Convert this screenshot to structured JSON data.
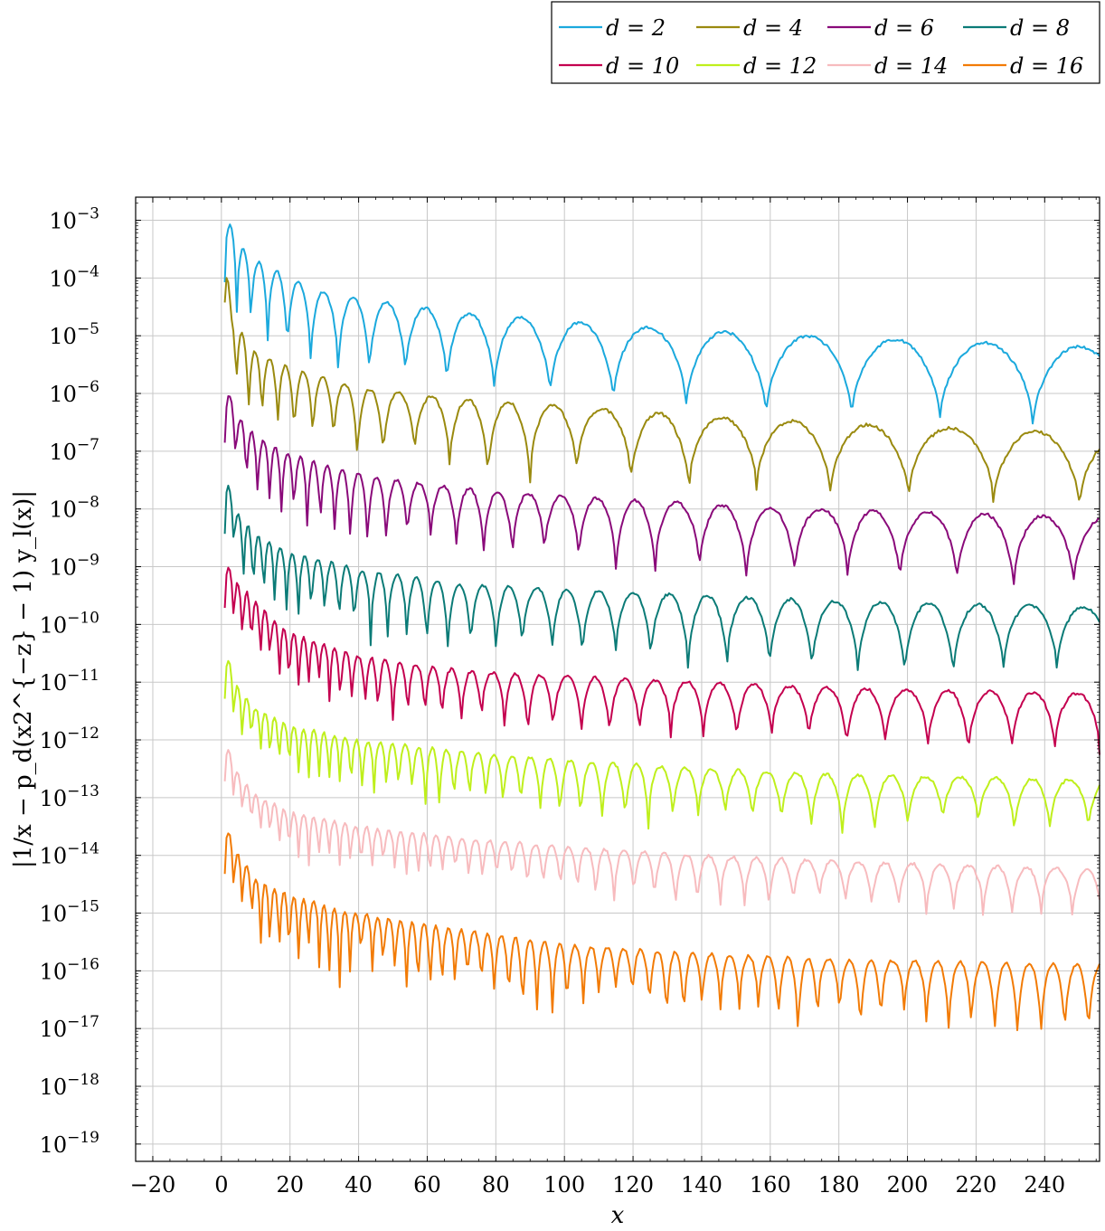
{
  "chart_data": {
    "type": "line",
    "xlabel": "x",
    "ylabel": "|1/x − p_d(x2^{−z} − 1) y_l(x)|",
    "xlim": [
      -25,
      256
    ],
    "ylim_log10": [
      -19.3,
      -2.6
    ],
    "y_scale": "log",
    "grid": true,
    "legend_position": "top-right",
    "x_ticks": [
      -20,
      0,
      20,
      40,
      60,
      80,
      100,
      120,
      140,
      160,
      180,
      200,
      220,
      240
    ],
    "x_tick_labels": [
      "−20",
      "0",
      "20",
      "40",
      "60",
      "80",
      "100",
      "120",
      "140",
      "160",
      "180",
      "200",
      "220",
      "240"
    ],
    "y_ticks": [
      {
        "exp": -3,
        "mantissa": "10",
        "sup": "−3"
      },
      {
        "exp": -4,
        "mantissa": "10",
        "sup": "−4"
      },
      {
        "exp": -5,
        "mantissa": "10",
        "sup": "−5"
      },
      {
        "exp": -6,
        "mantissa": "10",
        "sup": "−6"
      },
      {
        "exp": -7,
        "mantissa": "10",
        "sup": "−7"
      },
      {
        "exp": -8,
        "mantissa": "10",
        "sup": "−8"
      },
      {
        "exp": -9,
        "mantissa": "10",
        "sup": "−9"
      },
      {
        "exp": -10,
        "mantissa": "10",
        "sup": "−10"
      },
      {
        "exp": -11,
        "mantissa": "10",
        "sup": "−11"
      },
      {
        "exp": -12,
        "mantissa": "10",
        "sup": "−12"
      },
      {
        "exp": -13,
        "mantissa": "10",
        "sup": "−13"
      },
      {
        "exp": -14,
        "mantissa": "10",
        "sup": "−14"
      },
      {
        "exp": -15,
        "mantissa": "10",
        "sup": "−15"
      },
      {
        "exp": -16,
        "mantissa": "10",
        "sup": "−16"
      },
      {
        "exp": -17,
        "mantissa": "10",
        "sup": "−17"
      },
      {
        "exp": -18,
        "mantissa": "10",
        "sup": "−18"
      },
      {
        "exp": -19,
        "mantissa": "10",
        "sup": "−19"
      }
    ],
    "series": [
      {
        "name": "d = 2",
        "color": "#1ba9dd",
        "envelope": [
          [
            1,
            -2.78
          ],
          [
            2,
            -3.0
          ],
          [
            5,
            -3.4
          ],
          [
            10,
            -3.7
          ],
          [
            20,
            -4.0
          ],
          [
            30,
            -4.25
          ],
          [
            50,
            -4.45
          ],
          [
            70,
            -4.6
          ],
          [
            100,
            -4.75
          ],
          [
            130,
            -4.88
          ],
          [
            160,
            -4.98
          ],
          [
            190,
            -5.05
          ],
          [
            220,
            -5.12
          ],
          [
            256,
            -5.2
          ]
        ],
        "lobe_period": [
          [
            0,
            3
          ],
          [
            30,
            8
          ],
          [
            60,
            12
          ],
          [
            100,
            18
          ],
          [
            150,
            24
          ],
          [
            200,
            26
          ],
          [
            256,
            28
          ]
        ],
        "dip_depth": [
          1.3,
          1.6
        ]
      },
      {
        "name": "d = 4",
        "color": "#9a8a0f",
        "envelope": [
          [
            1,
            -3.3
          ],
          [
            3,
            -4.7
          ],
          [
            10,
            -5.3
          ],
          [
            20,
            -5.55
          ],
          [
            40,
            -5.9
          ],
          [
            60,
            -6.05
          ],
          [
            100,
            -6.22
          ],
          [
            140,
            -6.4
          ],
          [
            180,
            -6.52
          ],
          [
            220,
            -6.62
          ],
          [
            256,
            -6.7
          ]
        ],
        "lobe_period": [
          [
            0,
            3
          ],
          [
            30,
            6
          ],
          [
            60,
            10
          ],
          [
            100,
            14
          ],
          [
            150,
            20
          ],
          [
            200,
            24
          ],
          [
            256,
            26
          ]
        ],
        "dip_depth": [
          1.1,
          1.5
        ]
      },
      {
        "name": "d = 6",
        "color": "#8a0a7a",
        "envelope": [
          [
            1,
            -5.85
          ],
          [
            5,
            -6.4
          ],
          [
            10,
            -6.75
          ],
          [
            20,
            -7.05
          ],
          [
            30,
            -7.25
          ],
          [
            50,
            -7.5
          ],
          [
            80,
            -7.7
          ],
          [
            120,
            -7.85
          ],
          [
            160,
            -7.98
          ],
          [
            200,
            -8.05
          ],
          [
            256,
            -8.15
          ]
        ],
        "lobe_period": [
          [
            0,
            3
          ],
          [
            30,
            4
          ],
          [
            60,
            7
          ],
          [
            100,
            10
          ],
          [
            150,
            14
          ],
          [
            200,
            16
          ],
          [
            256,
            18
          ]
        ],
        "dip_depth": [
          1.0,
          1.4
        ]
      },
      {
        "name": "d = 8",
        "color": "#0b7b77",
        "envelope": [
          [
            1,
            -7.4
          ],
          [
            5,
            -8.1
          ],
          [
            10,
            -8.45
          ],
          [
            20,
            -8.75
          ],
          [
            40,
            -9.05
          ],
          [
            70,
            -9.3
          ],
          [
            100,
            -9.4
          ],
          [
            140,
            -9.5
          ],
          [
            180,
            -9.6
          ],
          [
            220,
            -9.65
          ],
          [
            256,
            -9.7
          ]
        ],
        "lobe_period": [
          [
            0,
            2.5
          ],
          [
            30,
            4
          ],
          [
            60,
            6
          ],
          [
            100,
            9
          ],
          [
            150,
            12
          ],
          [
            200,
            14
          ],
          [
            256,
            16
          ]
        ],
        "dip_depth": [
          1.0,
          1.4
        ]
      },
      {
        "name": "d = 10",
        "color": "#c4004f",
        "envelope": [
          [
            1,
            -8.9
          ],
          [
            5,
            -9.3
          ],
          [
            10,
            -9.6
          ],
          [
            15,
            -9.9
          ],
          [
            20,
            -10.15
          ],
          [
            40,
            -10.55
          ],
          [
            70,
            -10.8
          ],
          [
            100,
            -10.9
          ],
          [
            140,
            -11.0
          ],
          [
            180,
            -11.1
          ],
          [
            220,
            -11.15
          ],
          [
            256,
            -11.2
          ]
        ],
        "lobe_period": [
          [
            0,
            2.5
          ],
          [
            30,
            3
          ],
          [
            60,
            5
          ],
          [
            100,
            8
          ],
          [
            150,
            10
          ],
          [
            200,
            12
          ],
          [
            256,
            13
          ]
        ],
        "dip_depth": [
          0.8,
          1.3
        ]
      },
      {
        "name": "d = 12",
        "color": "#bfef1c",
        "envelope": [
          [
            1,
            -10.45
          ],
          [
            5,
            -11.1
          ],
          [
            10,
            -11.45
          ],
          [
            20,
            -11.75
          ],
          [
            40,
            -12.0
          ],
          [
            70,
            -12.2
          ],
          [
            100,
            -12.35
          ],
          [
            140,
            -12.5
          ],
          [
            180,
            -12.6
          ],
          [
            220,
            -12.65
          ],
          [
            256,
            -12.7
          ]
        ],
        "lobe_period": [
          [
            0,
            2.5
          ],
          [
            30,
            3
          ],
          [
            60,
            4
          ],
          [
            100,
            6
          ],
          [
            150,
            8
          ],
          [
            200,
            10
          ],
          [
            256,
            11
          ]
        ],
        "dip_depth": [
          0.8,
          1.2
        ]
      },
      {
        "name": "d = 14",
        "color": "#f7bbbe",
        "envelope": [
          [
            1,
            -12.0
          ],
          [
            5,
            -12.6
          ],
          [
            10,
            -12.95
          ],
          [
            20,
            -13.25
          ],
          [
            40,
            -13.5
          ],
          [
            70,
            -13.7
          ],
          [
            100,
            -13.85
          ],
          [
            140,
            -14.0
          ],
          [
            180,
            -14.1
          ],
          [
            220,
            -14.18
          ],
          [
            256,
            -14.25
          ]
        ],
        "lobe_period": [
          [
            0,
            2.5
          ],
          [
            30,
            3
          ],
          [
            60,
            3.5
          ],
          [
            100,
            5
          ],
          [
            150,
            7
          ],
          [
            200,
            8
          ],
          [
            256,
            9
          ]
        ],
        "dip_depth": [
          0.7,
          1.1
        ]
      },
      {
        "name": "d = 16",
        "color": "#f27b06",
        "envelope": [
          [
            1,
            -13.45
          ],
          [
            5,
            -14.0
          ],
          [
            10,
            -14.4
          ],
          [
            20,
            -14.7
          ],
          [
            35,
            -14.95
          ],
          [
            60,
            -15.2
          ],
          [
            100,
            -15.55
          ],
          [
            140,
            -15.7
          ],
          [
            180,
            -15.8
          ],
          [
            220,
            -15.85
          ],
          [
            256,
            -15.9
          ]
        ],
        "lobe_period": [
          [
            0,
            2.5
          ],
          [
            30,
            3
          ],
          [
            60,
            3.5
          ],
          [
            100,
            4.5
          ],
          [
            150,
            5.5
          ],
          [
            200,
            6.5
          ],
          [
            256,
            7
          ]
        ],
        "dip_depth": [
          0.8,
          1.6
        ]
      }
    ]
  }
}
